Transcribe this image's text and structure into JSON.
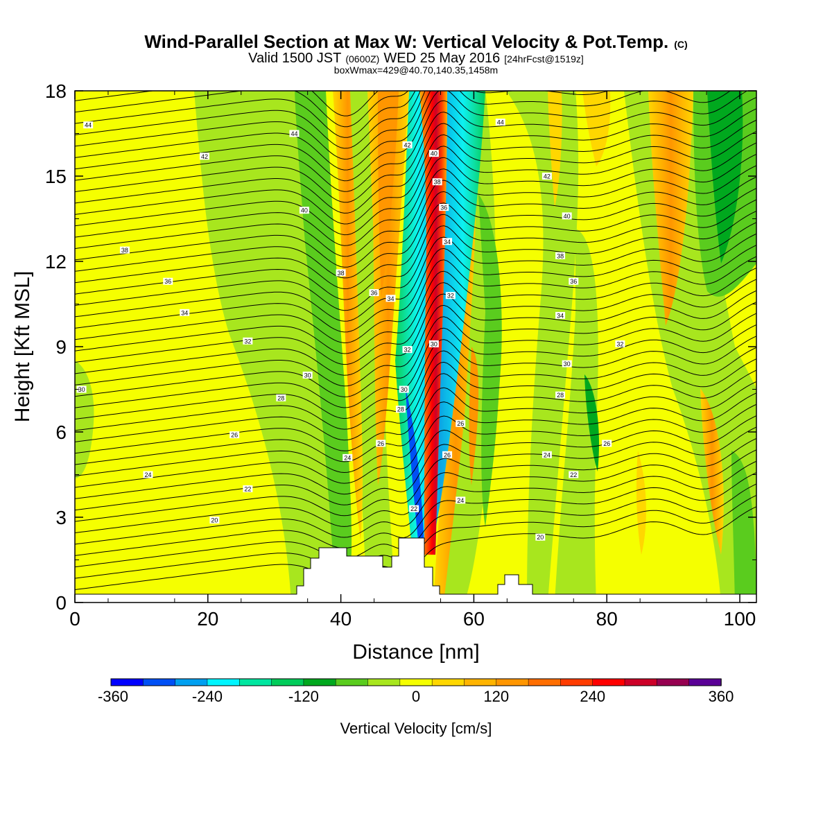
{
  "chart_data": {
    "type": "heatmap",
    "title": "Wind-Parallel Section at Max W: Vertical Velocity & Pot.Temp.",
    "title_mark": "(C)",
    "subtitle": {
      "a": "Valid 1500 JST",
      "b": "(0600Z)",
      "c": "WED 25 May 2016",
      "d": "[24hrFcst@1519z]"
    },
    "subtitle2": "boxWmax=429@40.70,140.35,1458m",
    "xlabel": "Distance [nm]",
    "ylabel": "Height [Kft MSL]",
    "xlim": [
      0,
      102.5
    ],
    "ylim": [
      0,
      18
    ],
    "xticks": [
      0,
      20,
      40,
      60,
      80,
      100
    ],
    "yticks": [
      0,
      3,
      6,
      9,
      12,
      15,
      18
    ],
    "colorbar": {
      "label": "Vertical Velocity [cm/s]",
      "ticks": [
        "-360",
        "-240",
        "-120",
        "0",
        "120",
        "240",
        "360"
      ],
      "colors": [
        "#0000ff",
        "#0050f5",
        "#00a0f0",
        "#00f5ff",
        "#00e6a0",
        "#00cc5a",
        "#00a81e",
        "#5acc1e",
        "#a8e61e",
        "#f5ff00",
        "#ffd700",
        "#ffb400",
        "#ff9600",
        "#ff6e00",
        "#ff3c00",
        "#ff0000",
        "#cc0028",
        "#960050",
        "#5a0096"
      ]
    },
    "features": [
      {
        "name": "upward band",
        "sign": "+",
        "x_bottom": 53,
        "x_top": 55
      },
      {
        "name": "downward band",
        "sign": "-",
        "x_bottom": 51,
        "x_top": 57
      }
    ],
    "contour_labels": [
      {
        "text": "44",
        "x": 2,
        "y": 16.8
      },
      {
        "text": "44",
        "x": 33,
        "y": 16.5
      },
      {
        "text": "42",
        "x": 19.5,
        "y": 15.7
      },
      {
        "text": "40",
        "x": 34.5,
        "y": 13.8
      },
      {
        "text": "38",
        "x": 7.5,
        "y": 12.4
      },
      {
        "text": "36",
        "x": 14,
        "y": 11.3
      },
      {
        "text": "34",
        "x": 16.5,
        "y": 10.2
      },
      {
        "text": "32",
        "x": 26,
        "y": 9.2
      },
      {
        "text": "30",
        "x": 1,
        "y": 7.5
      },
      {
        "text": "30",
        "x": 35,
        "y": 8.0
      },
      {
        "text": "28",
        "x": 31,
        "y": 7.2
      },
      {
        "text": "26",
        "x": 24,
        "y": 5.9
      },
      {
        "text": "24",
        "x": 11,
        "y": 4.5
      },
      {
        "text": "22",
        "x": 26,
        "y": 4.0
      },
      {
        "text": "20",
        "x": 21,
        "y": 2.9
      },
      {
        "text": "38",
        "x": 40,
        "y": 11.6
      },
      {
        "text": "36",
        "x": 45,
        "y": 10.9
      },
      {
        "text": "24",
        "x": 41,
        "y": 5.1
      },
      {
        "text": "26",
        "x": 46,
        "y": 5.6
      },
      {
        "text": "42",
        "x": 50,
        "y": 16.1
      },
      {
        "text": "34",
        "x": 47.5,
        "y": 10.7
      },
      {
        "text": "32",
        "x": 50,
        "y": 8.9
      },
      {
        "text": "30",
        "x": 49.5,
        "y": 7.5
      },
      {
        "text": "28",
        "x": 49,
        "y": 6.8
      },
      {
        "text": "22",
        "x": 51,
        "y": 3.3
      },
      {
        "text": "40",
        "x": 54,
        "y": 15.8
      },
      {
        "text": "38",
        "x": 54.5,
        "y": 14.8
      },
      {
        "text": "36",
        "x": 55.5,
        "y": 13.9
      },
      {
        "text": "34",
        "x": 56,
        "y": 12.7
      },
      {
        "text": "32",
        "x": 56.5,
        "y": 10.8
      },
      {
        "text": "30",
        "x": 54,
        "y": 9.1
      },
      {
        "text": "26",
        "x": 58,
        "y": 6.3
      },
      {
        "text": "26",
        "x": 56,
        "y": 5.2
      },
      {
        "text": "24",
        "x": 58,
        "y": 3.6
      },
      {
        "text": "44",
        "x": 64,
        "y": 16.9
      },
      {
        "text": "42",
        "x": 71,
        "y": 15.0
      },
      {
        "text": "40",
        "x": 74,
        "y": 13.6
      },
      {
        "text": "38",
        "x": 73,
        "y": 12.2
      },
      {
        "text": "36",
        "x": 75,
        "y": 11.3
      },
      {
        "text": "34",
        "x": 73,
        "y": 10.1
      },
      {
        "text": "32",
        "x": 82,
        "y": 9.1
      },
      {
        "text": "30",
        "x": 74,
        "y": 8.4
      },
      {
        "text": "28",
        "x": 73,
        "y": 7.3
      },
      {
        "text": "26",
        "x": 80,
        "y": 5.6
      },
      {
        "text": "24",
        "x": 71,
        "y": 5.2
      },
      {
        "text": "22",
        "x": 75,
        "y": 4.5
      },
      {
        "text": "20",
        "x": 70,
        "y": 2.3
      }
    ]
  }
}
